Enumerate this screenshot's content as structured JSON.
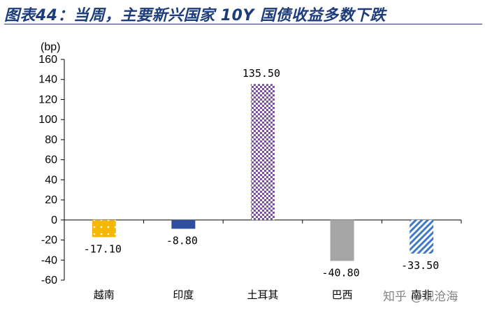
{
  "title": "图表44：当周，主要新兴国家 10Y 国债收益多数下跌",
  "watermark": "知乎 @观沧海",
  "chart_data": {
    "type": "bar",
    "unit_label": "(bp)",
    "categories": [
      "越南",
      "印度",
      "土耳其",
      "巴西",
      "南非"
    ],
    "values": [
      -17.1,
      -8.8,
      135.5,
      -40.8,
      -33.5
    ],
    "data_labels": [
      "-17.10",
      "-8.80",
      "135.50",
      "-40.80",
      "-33.50"
    ],
    "ylim": [
      -60,
      160
    ],
    "yticks": [
      -60,
      -40,
      -20,
      0,
      20,
      40,
      60,
      80,
      100,
      120,
      140,
      160
    ],
    "bar_colors": [
      "#f5b800",
      "#2f4f9e",
      "#7b4fa8",
      "#a6a6a6",
      "#3f78c8"
    ],
    "bar_patterns": [
      "dots",
      "solid",
      "checker",
      "solid",
      "diagonal"
    ],
    "grid": false
  }
}
